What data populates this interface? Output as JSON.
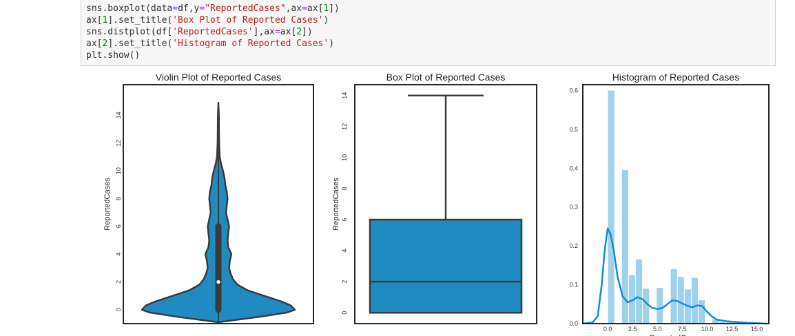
{
  "code": {
    "lines": [
      {
        "parts": [
          {
            "t": "sns.boxplot(data",
            "c": ""
          },
          {
            "t": "=",
            "c": "op"
          },
          {
            "t": "df,y",
            "c": ""
          },
          {
            "t": "=",
            "c": "op"
          },
          {
            "t": "\"ReportedCases\"",
            "c": "str"
          },
          {
            "t": ",ax",
            "c": ""
          },
          {
            "t": "=",
            "c": "op"
          },
          {
            "t": "ax[",
            "c": ""
          },
          {
            "t": "1",
            "c": "num"
          },
          {
            "t": "])",
            "c": ""
          }
        ]
      },
      {
        "parts": [
          {
            "t": "ax[",
            "c": ""
          },
          {
            "t": "1",
            "c": "num"
          },
          {
            "t": "].set_title(",
            "c": ""
          },
          {
            "t": "'Box Plot of Reported Cases'",
            "c": "str"
          },
          {
            "t": ")",
            "c": ""
          }
        ]
      },
      {
        "parts": [
          {
            "t": "sns.distplot(df[",
            "c": ""
          },
          {
            "t": "'ReportedCases'",
            "c": "str"
          },
          {
            "t": "],ax",
            "c": ""
          },
          {
            "t": "=",
            "c": "op"
          },
          {
            "t": "ax[",
            "c": ""
          },
          {
            "t": "2",
            "c": "num"
          },
          {
            "t": "])",
            "c": ""
          }
        ]
      },
      {
        "parts": [
          {
            "t": "ax[",
            "c": ""
          },
          {
            "t": "2",
            "c": "num"
          },
          {
            "t": "].set_title(",
            "c": ""
          },
          {
            "t": "'Histogram of Reported Cases'",
            "c": "str"
          },
          {
            "t": ")",
            "c": ""
          }
        ]
      },
      {
        "parts": [
          {
            "t": "plt.show()",
            "c": ""
          }
        ]
      }
    ]
  },
  "colors": {
    "fill": "#1f8bc0",
    "edge": "#3b3b3b",
    "hist": "#9fd1ec",
    "kde": "#0f8fd6"
  },
  "chart_data": [
    {
      "type": "violin",
      "title": "Violin Plot of Reported Cases",
      "ylabel": "ReportedCases",
      "ylim": [
        -1,
        16.2
      ],
      "yticks": [
        0,
        2,
        4,
        6,
        8,
        10,
        12,
        14
      ],
      "density": [
        [
          -0.9,
          0.0
        ],
        [
          -0.5,
          0.55
        ],
        [
          -0.2,
          0.9
        ],
        [
          0,
          1.0
        ],
        [
          0.3,
          0.95
        ],
        [
          0.6,
          0.82
        ],
        [
          1.0,
          0.6
        ],
        [
          1.4,
          0.38
        ],
        [
          1.8,
          0.25
        ],
        [
          2.2,
          0.19
        ],
        [
          2.6,
          0.16
        ],
        [
          3.0,
          0.14
        ],
        [
          3.5,
          0.15
        ],
        [
          4.0,
          0.17
        ],
        [
          4.5,
          0.13
        ],
        [
          5.0,
          0.12
        ],
        [
          5.5,
          0.13
        ],
        [
          6.0,
          0.14
        ],
        [
          6.5,
          0.12
        ],
        [
          7.0,
          0.1
        ],
        [
          7.5,
          0.11
        ],
        [
          8.0,
          0.12
        ],
        [
          8.5,
          0.11
        ],
        [
          9.0,
          0.09
        ],
        [
          9.5,
          0.08
        ],
        [
          10.0,
          0.06
        ],
        [
          10.5,
          0.035
        ],
        [
          11.0,
          0.018
        ],
        [
          12.0,
          0.01
        ],
        [
          13.0,
          0.008
        ],
        [
          14.0,
          0.006
        ],
        [
          14.9,
          0.0
        ]
      ],
      "box": {
        "q1": 0,
        "median": 2,
        "q3": 6,
        "whisker_low": -0.9,
        "whisker_high": 14.9
      }
    },
    {
      "type": "box",
      "title": "Box Plot of Reported Cases",
      "ylabel": "ReportedCases",
      "ylim": [
        -0.7,
        14.7
      ],
      "yticks": [
        0,
        2,
        4,
        6,
        8,
        10,
        12,
        14
      ],
      "box": {
        "min": 0,
        "q1": 0,
        "median": 2,
        "q3": 6,
        "max": 14
      }
    },
    {
      "type": "histogram",
      "title": "Histogram of Reported Cases",
      "xlabel": "ReportedCases",
      "xlim": [
        -2.5,
        16.2
      ],
      "ylim": [
        0,
        0.615
      ],
      "xticks": [
        0.0,
        2.5,
        5.0,
        7.5,
        10.0,
        12.5,
        15.0
      ],
      "yticks": [
        0.0,
        0.1,
        0.2,
        0.3,
        0.4,
        0.5,
        0.6
      ],
      "bins": [
        {
          "x0": 0.0,
          "x1": 0.7,
          "h": 0.6
        },
        {
          "x0": 0.7,
          "x1": 1.4,
          "h": 0.0
        },
        {
          "x0": 1.4,
          "x1": 2.1,
          "h": 0.395
        },
        {
          "x0": 2.1,
          "x1": 2.8,
          "h": 0.125
        },
        {
          "x0": 2.8,
          "x1": 3.5,
          "h": 0.165
        },
        {
          "x0": 3.5,
          "x1": 4.2,
          "h": 0.09
        },
        {
          "x0": 4.2,
          "x1": 4.9,
          "h": 0.0
        },
        {
          "x0": 4.9,
          "x1": 5.6,
          "h": 0.092
        },
        {
          "x0": 5.6,
          "x1": 6.3,
          "h": 0.0
        },
        {
          "x0": 6.3,
          "x1": 7.0,
          "h": 0.14
        },
        {
          "x0": 7.0,
          "x1": 7.7,
          "h": 0.12
        },
        {
          "x0": 7.7,
          "x1": 8.4,
          "h": 0.088
        },
        {
          "x0": 8.4,
          "x1": 9.1,
          "h": 0.118
        },
        {
          "x0": 9.1,
          "x1": 9.8,
          "h": 0.06
        },
        {
          "x0": 9.8,
          "x1": 10.5,
          "h": 0.0
        },
        {
          "x0": 10.5,
          "x1": 11.2,
          "h": 0.01
        },
        {
          "x0": 11.2,
          "x1": 11.9,
          "h": 0.004
        },
        {
          "x0": 11.9,
          "x1": 12.6,
          "h": 0.004
        },
        {
          "x0": 12.6,
          "x1": 13.3,
          "h": 0.003
        },
        {
          "x0": 13.3,
          "x1": 14.0,
          "h": 0.002
        },
        {
          "x0": 14.0,
          "x1": 14.7,
          "h": 0.002
        }
      ],
      "kde": [
        [
          -2.5,
          0.0
        ],
        [
          -1.5,
          0.003
        ],
        [
          -1.0,
          0.02
        ],
        [
          -0.6,
          0.1
        ],
        [
          -0.3,
          0.19
        ],
        [
          0.0,
          0.245
        ],
        [
          0.3,
          0.23
        ],
        [
          0.6,
          0.19
        ],
        [
          1.0,
          0.12
        ],
        [
          1.5,
          0.07
        ],
        [
          2.0,
          0.055
        ],
        [
          2.5,
          0.06
        ],
        [
          3.0,
          0.068
        ],
        [
          3.5,
          0.063
        ],
        [
          4.0,
          0.05
        ],
        [
          4.5,
          0.04
        ],
        [
          5.0,
          0.038
        ],
        [
          5.5,
          0.04
        ],
        [
          6.0,
          0.05
        ],
        [
          6.5,
          0.06
        ],
        [
          7.0,
          0.058
        ],
        [
          7.5,
          0.052
        ],
        [
          8.0,
          0.046
        ],
        [
          8.5,
          0.042
        ],
        [
          9.0,
          0.047
        ],
        [
          9.5,
          0.045
        ],
        [
          10.0,
          0.03
        ],
        [
          10.5,
          0.018
        ],
        [
          11.0,
          0.01
        ],
        [
          12.0,
          0.006
        ],
        [
          13.0,
          0.004
        ],
        [
          14.0,
          0.002
        ],
        [
          15.0,
          0.001
        ],
        [
          16.0,
          0.0
        ]
      ]
    }
  ]
}
